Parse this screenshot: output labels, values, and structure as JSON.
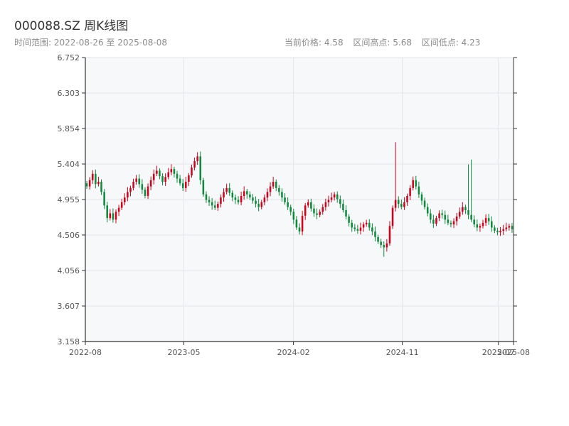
{
  "title": "000088.SZ 周K线图",
  "subtitle": "时间范围: 2022-08-26 至 2025-08-08",
  "stats": {
    "price": "当前价格: 4.58",
    "high": "区间高点: 5.68",
    "low": "区间低点: 4.23"
  },
  "colors": {
    "up": "#d0021b",
    "down": "#0f8a3c",
    "plot_bg": "#f7f8fa",
    "grid": "#e3e6ea",
    "axis": "#333333"
  },
  "chart_data": {
    "type": "candlestick",
    "title": "000088.SZ 周K线图",
    "ylim": [
      3.158,
      6.752
    ],
    "y_ticks": [
      "6.752",
      "6.303",
      "5.854",
      "5.404",
      "4.955",
      "4.506",
      "4.056",
      "3.607",
      "3.158"
    ],
    "x_ticks": [
      "2022-08",
      "2023-05",
      "2024-02",
      "2024-11",
      "2025-07",
      "2025-08"
    ],
    "x_range": [
      "2022-08-26",
      "2025-08-08"
    ],
    "grid": true,
    "close_series": [
      5.12,
      5.2,
      5.28,
      5.15,
      5.18,
      5.05,
      4.88,
      4.72,
      4.78,
      4.7,
      4.8,
      4.85,
      4.92,
      4.98,
      5.05,
      5.1,
      5.18,
      5.22,
      5.15,
      5.08,
      5.0,
      5.12,
      5.2,
      5.28,
      5.32,
      5.25,
      5.18,
      5.24,
      5.3,
      5.34,
      5.28,
      5.22,
      5.16,
      5.1,
      5.18,
      5.26,
      5.36,
      5.44,
      5.5,
      5.2,
      5.02,
      4.95,
      4.92,
      4.88,
      4.85,
      4.9,
      4.98,
      5.05,
      5.1,
      5.04,
      4.98,
      4.95,
      4.92,
      5.0,
      5.06,
      5.02,
      4.98,
      4.94,
      4.9,
      4.86,
      4.92,
      4.98,
      5.05,
      5.12,
      5.18,
      5.1,
      5.05,
      4.98,
      4.92,
      4.86,
      4.8,
      4.7,
      4.6,
      4.55,
      4.75,
      4.88,
      4.92,
      4.84,
      4.78,
      4.76,
      4.8,
      4.86,
      4.92,
      4.95,
      4.98,
      5.02,
      4.96,
      4.9,
      4.82,
      4.74,
      4.66,
      4.6,
      4.58,
      4.56,
      4.6,
      4.64,
      4.66,
      4.6,
      4.55,
      4.48,
      4.42,
      4.38,
      4.35,
      4.4,
      4.62,
      4.85,
      4.95,
      4.9,
      4.86,
      4.92,
      5.0,
      5.1,
      5.2,
      5.12,
      5.02,
      4.94,
      4.86,
      4.78,
      4.7,
      4.65,
      4.72,
      4.78,
      4.76,
      4.7,
      4.66,
      4.64,
      4.68,
      4.74,
      4.8,
      4.86,
      4.82,
      4.76,
      4.7,
      4.64,
      4.6,
      4.62,
      4.66,
      4.72,
      4.68,
      4.6,
      4.56,
      4.54,
      4.56,
      4.58,
      4.6,
      4.62,
      4.58
    ],
    "notable_highs": [
      5.68,
      5.46,
      5.4
    ],
    "notable_lows": [
      4.23
    ]
  }
}
